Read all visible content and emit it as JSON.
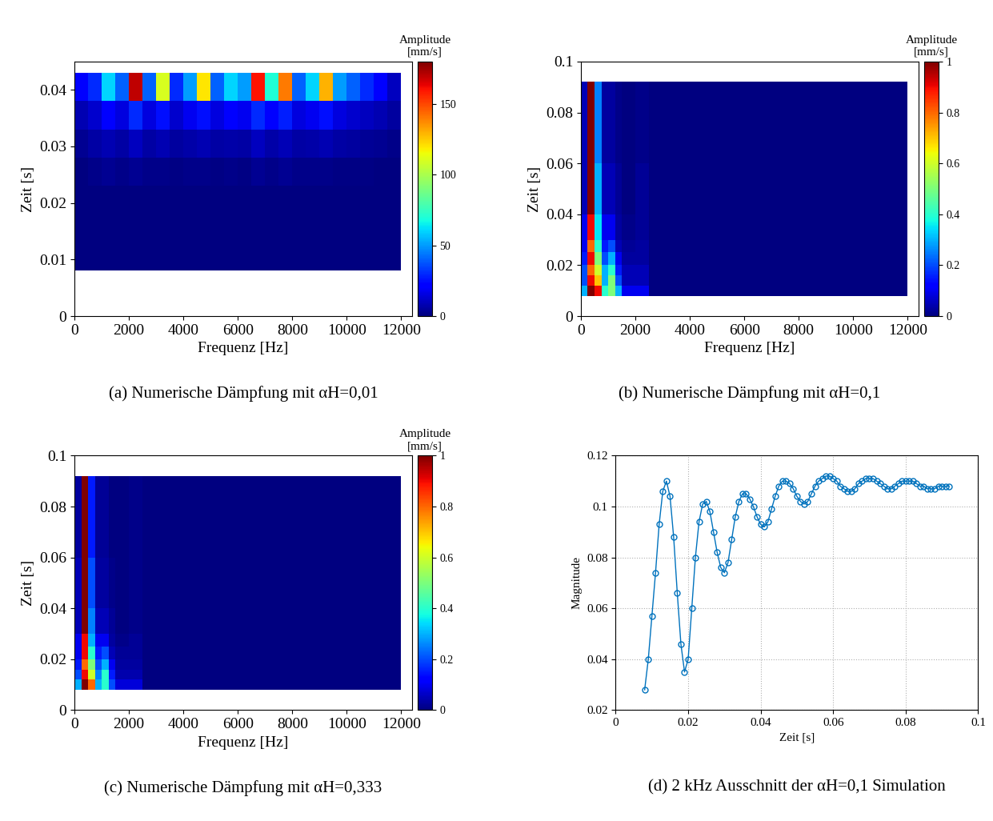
{
  "chart_data": [
    {
      "type": "heatmap",
      "title": "(a) Numerische Dämpfung mit αH=0,01",
      "x_label": "Frequenz [Hz]",
      "y_label": "Zeit [s]",
      "xlim": [
        0,
        12400
      ],
      "xticks": [
        0,
        2000,
        4000,
        6000,
        8000,
        10000,
        12000
      ],
      "ylim": [
        0,
        0.045
      ],
      "yticks": [
        0,
        0.01,
        0.02,
        0.03,
        0.04
      ],
      "x_edges": [
        0,
        500,
        1000,
        1500,
        2000,
        2500,
        3000,
        3500,
        4000,
        4500,
        5000,
        5500,
        6000,
        6500,
        7000,
        7500,
        8000,
        8500,
        9000,
        9500,
        10000,
        10500,
        11000,
        11500,
        12000
      ],
      "y_edges": [
        0.008,
        0.013,
        0.018,
        0.023,
        0.028,
        0.033,
        0.038,
        0.043
      ],
      "cells": [
        [
          0,
          0,
          0,
          0,
          0,
          0,
          0,
          0,
          0,
          0,
          0,
          0,
          0,
          0,
          0,
          0,
          0,
          0,
          0,
          0,
          0,
          0,
          0,
          0
        ],
        [
          0,
          0,
          0,
          0,
          0,
          0,
          0,
          0,
          0,
          0,
          0,
          0,
          0,
          0,
          0,
          0,
          0,
          0,
          0,
          0,
          0,
          0,
          0,
          0
        ],
        [
          0,
          0,
          0,
          0,
          0,
          0,
          0,
          0,
          0,
          0,
          0,
          0,
          0,
          0,
          0,
          0,
          0,
          0,
          0,
          0,
          0,
          0,
          0,
          0
        ],
        [
          0,
          2,
          3,
          2,
          3,
          2,
          2,
          1,
          2,
          2,
          1,
          2,
          1,
          3,
          2,
          3,
          2,
          2,
          2,
          1,
          1,
          1,
          0,
          0
        ],
        [
          3,
          6,
          8,
          6,
          10,
          6,
          8,
          5,
          7,
          8,
          6,
          7,
          6,
          10,
          7,
          9,
          6,
          7,
          8,
          6,
          5,
          4,
          3,
          2
        ],
        [
          8,
          12,
          20,
          15,
          30,
          15,
          25,
          12,
          18,
          25,
          15,
          20,
          18,
          30,
          20,
          28,
          15,
          18,
          25,
          15,
          12,
          10,
          8,
          5
        ],
        [
          20,
          30,
          60,
          40,
          170,
          40,
          110,
          30,
          50,
          120,
          40,
          60,
          50,
          160,
          70,
          140,
          40,
          60,
          130,
          50,
          40,
          30,
          20,
          10
        ]
      ],
      "colorbar_label": "Amplitude\n[mm/s]",
      "colorbar_lim": [
        0,
        180
      ],
      "colorbar_ticks": [
        0,
        50,
        100,
        150
      ]
    },
    {
      "type": "heatmap",
      "title": "(b) Numerische Dämpfung mit αH=0,1",
      "x_label": "Frequenz [Hz]",
      "y_label": "Zeit [s]",
      "xlim": [
        0,
        12400
      ],
      "xticks": [
        0,
        2000,
        4000,
        6000,
        8000,
        10000,
        12000
      ],
      "ylim": [
        0,
        0.1
      ],
      "yticks": [
        0,
        0.02,
        0.04,
        0.06,
        0.08,
        0.1
      ],
      "x_edges": [
        0,
        250,
        500,
        750,
        1000,
        1250,
        1500,
        2000,
        2500,
        12000
      ],
      "y_edges": [
        0.008,
        0.012,
        0.016,
        0.02,
        0.025,
        0.03,
        0.04,
        0.06,
        0.092
      ],
      "cells": [
        [
          0.3,
          1,
          0.9,
          0.4,
          0.5,
          0.3,
          0.1,
          0.1,
          0
        ],
        [
          0.2,
          0.9,
          0.7,
          0.3,
          0.5,
          0.2,
          0.05,
          0.05,
          0
        ],
        [
          0.2,
          0.8,
          0.6,
          0.3,
          0.4,
          0.15,
          0.05,
          0.05,
          0
        ],
        [
          0.15,
          0.9,
          0.5,
          0.2,
          0.3,
          0.1,
          0.03,
          0.03,
          0
        ],
        [
          0.1,
          0.8,
          0.4,
          0.15,
          0.2,
          0.05,
          0.02,
          0.03,
          0
        ],
        [
          0.1,
          0.9,
          0.35,
          0.1,
          0.1,
          0.03,
          0.01,
          0.02,
          0
        ],
        [
          0.05,
          1,
          0.3,
          0.05,
          0.05,
          0.02,
          0,
          0.02,
          0
        ],
        [
          0.05,
          1,
          0.25,
          0.03,
          0.03,
          0.01,
          0,
          0.01,
          0
        ]
      ],
      "colorbar_label": "Amplitude\n[mm/s]",
      "colorbar_lim": [
        0,
        1
      ],
      "colorbar_ticks": [
        0,
        0.2,
        0.4,
        0.6,
        0.8,
        1
      ]
    },
    {
      "type": "heatmap",
      "title": "(c) Numerische Dämpfung mit αH=0,333",
      "x_label": "Frequenz [Hz]",
      "y_label": "Zeit [s]",
      "xlim": [
        0,
        12400
      ],
      "xticks": [
        0,
        2000,
        4000,
        6000,
        8000,
        10000,
        12000
      ],
      "ylim": [
        0,
        0.1
      ],
      "yticks": [
        0,
        0.02,
        0.04,
        0.06,
        0.08,
        0.1
      ],
      "x_edges": [
        0,
        250,
        500,
        750,
        1000,
        1250,
        1500,
        2000,
        2500,
        12000
      ],
      "y_edges": [
        0.008,
        0.012,
        0.016,
        0.02,
        0.025,
        0.03,
        0.04,
        0.06,
        0.092
      ],
      "cells": [
        [
          0.3,
          1,
          0.8,
          0.3,
          0.4,
          0.2,
          0.08,
          0.08,
          0
        ],
        [
          0.2,
          0.9,
          0.6,
          0.25,
          0.4,
          0.15,
          0.04,
          0.04,
          0
        ],
        [
          0.15,
          0.8,
          0.5,
          0.2,
          0.3,
          0.1,
          0.03,
          0.03,
          0
        ],
        [
          0.1,
          0.9,
          0.4,
          0.15,
          0.2,
          0.05,
          0.02,
          0.02,
          0
        ],
        [
          0.1,
          0.9,
          0.3,
          0.1,
          0.1,
          0.03,
          0.01,
          0.02,
          0
        ],
        [
          0.05,
          1,
          0.25,
          0.05,
          0.05,
          0.02,
          0,
          0.01,
          0
        ],
        [
          0.05,
          1,
          0.2,
          0.03,
          0.03,
          0.01,
          0,
          0.01,
          0
        ],
        [
          0.03,
          1,
          0.15,
          0.02,
          0.02,
          0,
          0,
          0.01,
          0
        ]
      ],
      "colorbar_label": "Amplitude\n[mm/s]",
      "colorbar_lim": [
        0,
        1
      ],
      "colorbar_ticks": [
        0,
        0.2,
        0.4,
        0.6,
        0.8,
        1
      ]
    },
    {
      "type": "line",
      "title": "(d) 2 kHz Ausschnitt der αH=0,1 Simulation",
      "x_label": "Zeit [s]",
      "y_label": "Magnitude",
      "xlim": [
        0,
        0.1
      ],
      "xticks": [
        0,
        0.02,
        0.04,
        0.06,
        0.08,
        0.1
      ],
      "ylim": [
        0.02,
        0.12
      ],
      "yticks": [
        0.02,
        0.04,
        0.06,
        0.08,
        0.1,
        0.12
      ],
      "grid": true,
      "x": [
        0.008,
        0.009,
        0.01,
        0.011,
        0.012,
        0.013,
        0.014,
        0.015,
        0.016,
        0.017,
        0.018,
        0.019,
        0.02,
        0.021,
        0.022,
        0.023,
        0.024,
        0.025,
        0.026,
        0.027,
        0.028,
        0.029,
        0.03,
        0.031,
        0.032,
        0.033,
        0.034,
        0.035,
        0.036,
        0.037,
        0.038,
        0.039,
        0.04,
        0.041,
        0.042,
        0.043,
        0.044,
        0.045,
        0.046,
        0.047,
        0.048,
        0.049,
        0.05,
        0.051,
        0.052,
        0.053,
        0.054,
        0.055,
        0.056,
        0.057,
        0.058,
        0.059,
        0.06,
        0.061,
        0.062,
        0.063,
        0.064,
        0.065,
        0.066,
        0.067,
        0.068,
        0.069,
        0.07,
        0.071,
        0.072,
        0.073,
        0.074,
        0.075,
        0.076,
        0.077,
        0.078,
        0.079,
        0.08,
        0.081,
        0.082,
        0.083,
        0.084,
        0.085,
        0.086,
        0.087,
        0.088,
        0.089,
        0.09,
        0.091,
        0.092
      ],
      "series": [
        {
          "color": "#0072bd",
          "marker": "o",
          "line_style": "solid",
          "values": [
            0.028,
            0.04,
            0.057,
            0.074,
            0.093,
            0.106,
            0.11,
            0.104,
            0.088,
            0.066,
            0.046,
            0.035,
            0.04,
            0.06,
            0.08,
            0.094,
            0.101,
            0.102,
            0.098,
            0.09,
            0.082,
            0.076,
            0.074,
            0.078,
            0.087,
            0.096,
            0.102,
            0.105,
            0.105,
            0.103,
            0.1,
            0.096,
            0.093,
            0.092,
            0.094,
            0.099,
            0.104,
            0.108,
            0.11,
            0.11,
            0.109,
            0.107,
            0.104,
            0.102,
            0.101,
            0.102,
            0.105,
            0.108,
            0.11,
            0.111,
            0.112,
            0.112,
            0.111,
            0.11,
            0.108,
            0.107,
            0.106,
            0.106,
            0.107,
            0.109,
            0.11,
            0.111,
            0.111,
            0.111,
            0.11,
            0.109,
            0.108,
            0.107,
            0.107,
            0.108,
            0.109,
            0.11,
            0.11,
            0.11,
            0.11,
            0.109,
            0.108,
            0.108,
            0.107,
            0.107,
            0.107,
            0.108,
            0.108,
            0.108,
            0.108
          ]
        }
      ]
    }
  ]
}
